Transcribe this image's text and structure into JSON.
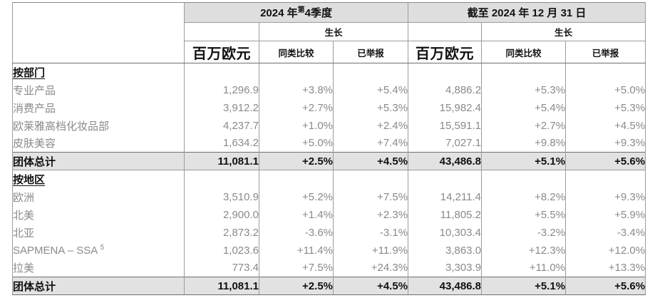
{
  "colors": {
    "band_background": "#dedede",
    "total_row_background": "#e2e2e2",
    "grid_line": "#9b9b9b",
    "heavy_line": "#6e6e6e",
    "muted_text": "#8a8a8a",
    "dark_text": "#111111"
  },
  "table": {
    "q4_group_header": {
      "pre": "2024 年",
      "sup": "第",
      "post": "4季度"
    },
    "fy_group_header": "截至 2024 年 12 月 31 日",
    "growth_label": "生长",
    "unit_label": "百万欧元",
    "subcol_like_for_like": "同类比较",
    "subcol_reported": "已举报",
    "rows": [
      {
        "type": "section",
        "label": "按部门",
        "values": [
          "",
          "",
          "",
          "",
          "",
          ""
        ]
      },
      {
        "type": "data",
        "label": "专业产品",
        "values": [
          "1,296.9",
          "+3.8%",
          "+5.4%",
          "4,886.2",
          "+5.3%",
          "+5.0%"
        ]
      },
      {
        "type": "data",
        "label": "消费产品",
        "values": [
          "3,912.2",
          "+2.7%",
          "+5.3%",
          "15,982.4",
          "+5.4%",
          "+5.3%"
        ]
      },
      {
        "type": "data",
        "label": "欧莱雅高档化妆品部",
        "values": [
          "4,237.7",
          "+1.0%",
          "+2.4%",
          "15,591.1",
          "+2.7%",
          "+4.5%"
        ]
      },
      {
        "type": "data",
        "label": "皮肤美容",
        "values": [
          "1,634.2",
          "+5.0%",
          "+7.4%",
          "7,027.1",
          "+9.8%",
          "+9.3%"
        ]
      },
      {
        "type": "total",
        "label": "团体总计",
        "values": [
          "11,081.1",
          "+2.5%",
          "+4.5%",
          "43,486.8",
          "+5.1%",
          "+5.6%"
        ]
      },
      {
        "type": "section",
        "label": "按地区",
        "values": [
          "",
          "",
          "",
          "",
          "",
          ""
        ]
      },
      {
        "type": "data",
        "label": "欧洲",
        "values": [
          "3,510.9",
          "+5.2%",
          "+7.5%",
          "14,211.4",
          "+8.2%",
          "+9.3%"
        ]
      },
      {
        "type": "data",
        "label": "北美",
        "values": [
          "2,900.0",
          "+1.4%",
          "+2.3%",
          "11,805.2",
          "+5.5%",
          "+5.9%"
        ]
      },
      {
        "type": "data",
        "label": "北亚",
        "values": [
          "2,873.2",
          "-3.6%",
          "-3.1%",
          "10,303.4",
          "-3.2%",
          "-3.4%"
        ]
      },
      {
        "type": "data",
        "label": "SAPMENA – SSA",
        "label_sup": "5",
        "values": [
          "1,023.6",
          "+11.4%",
          "+11.9%",
          "3,863.0",
          "+12.3%",
          "+12.0%"
        ]
      },
      {
        "type": "data",
        "label": "拉美",
        "values": [
          "773.4",
          "+7.5%",
          "+24.3%",
          "3,303.9",
          "+11.0%",
          "+13.3%"
        ]
      },
      {
        "type": "total",
        "label": "团体总计",
        "values": [
          "11,081.1",
          "+2.5%",
          "+4.5%",
          "43,486.8",
          "+5.1%",
          "+5.6%"
        ]
      }
    ],
    "column_keys": [
      "q4-million-euros",
      "q4-like-for-like",
      "q4-reported",
      "fy-million-euros",
      "fy-like-for-like",
      "fy-reported"
    ]
  }
}
